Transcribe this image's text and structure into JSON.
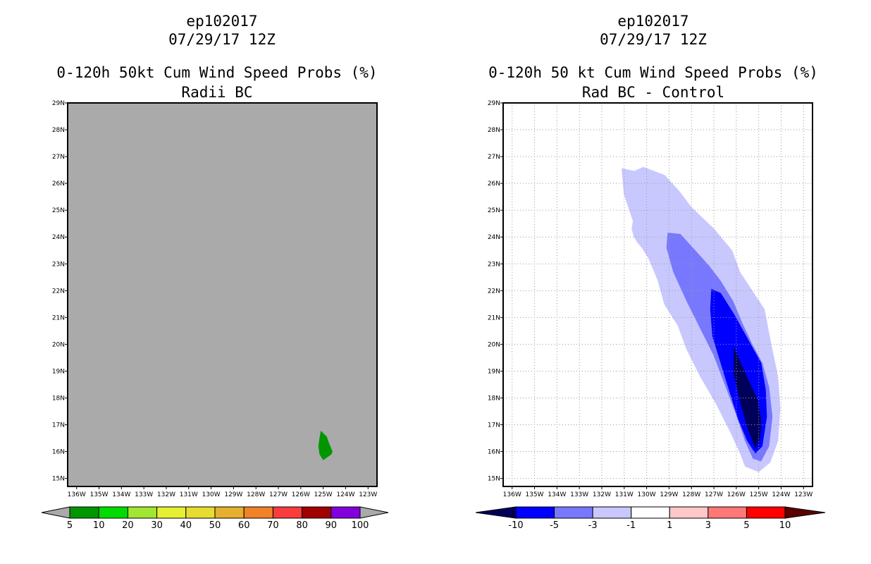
{
  "chart_data": [
    {
      "type": "filled-contour-map",
      "title_lines": [
        "ep102017",
        "07/29/17 12Z",
        "0-120h 50kt Cum Wind Speed Probs (%)",
        "Radii BC"
      ],
      "x_ticks": [
        "136W",
        "135W",
        "134W",
        "133W",
        "132W",
        "131W",
        "130W",
        "129W",
        "128W",
        "127W",
        "126W",
        "125W",
        "124W",
        "123W"
      ],
      "y_ticks": [
        "29N",
        "28N",
        "27N",
        "26N",
        "25N",
        "24N",
        "23N",
        "22N",
        "21N",
        "20N",
        "19N",
        "18N",
        "17N",
        "16N",
        "15N"
      ],
      "xlim": [
        -136.4,
        -122.6
      ],
      "ylim": [
        14.7,
        29.0
      ],
      "background_color": "#aaaaaa",
      "grid": false,
      "colorbar": {
        "labels": [
          "5",
          "10",
          "20",
          "30",
          "40",
          "50",
          "60",
          "70",
          "80",
          "90",
          "100"
        ],
        "colors": [
          "#009600",
          "#00dc00",
          "#a0e632",
          "#e6f032",
          "#e6dc32",
          "#e6af2d",
          "#f08228",
          "#fa3c3c",
          "#a00000",
          "#8200dc"
        ],
        "end_colors": [
          "#aaaaaa",
          "#aaaaaa"
        ]
      },
      "contours": [
        {
          "level": 5,
          "color": "#009600",
          "lon": [
            -125.1,
            -124.85,
            -124.75,
            -124.6,
            -124.65,
            -125.0,
            -125.15,
            -125.2,
            -125.15
          ],
          "lat": [
            16.75,
            16.55,
            16.3,
            16.0,
            15.9,
            15.7,
            15.9,
            16.2,
            16.5
          ]
        }
      ]
    },
    {
      "type": "filled-contour-map",
      "title_lines": [
        "ep102017",
        "07/29/17 12Z",
        "0-120h 50 kt Cum Wind Speed Probs (%)",
        "Rad BC - Control"
      ],
      "x_ticks": [
        "136W",
        "135W",
        "134W",
        "133W",
        "132W",
        "131W",
        "130W",
        "129W",
        "128W",
        "127W",
        "126W",
        "125W",
        "124W",
        "123W"
      ],
      "y_ticks": [
        "29N",
        "28N",
        "27N",
        "26N",
        "25N",
        "24N",
        "23N",
        "22N",
        "21N",
        "20N",
        "19N",
        "18N",
        "17N",
        "16N",
        "15N"
      ],
      "xlim": [
        -136.4,
        -122.6
      ],
      "ylim": [
        14.7,
        29.0
      ],
      "background_color": "#ffffff",
      "grid": true,
      "colorbar": {
        "labels": [
          "-10",
          "-5",
          "-3",
          "-1",
          "1",
          "3",
          "5",
          "10"
        ],
        "colors": [
          "#0000ff",
          "#7878ff",
          "#c8c8ff",
          "#ffffff",
          "#ffc8c8",
          "#ff7878",
          "#ff0000"
        ],
        "end_colors": [
          "#00005a",
          "#5a0000"
        ]
      },
      "contours": [
        {
          "level": -1,
          "color": "#c8c8ff",
          "lon": [
            -131.1,
            -130.55,
            -130.15,
            -129.2,
            -128.55,
            -128.0,
            -127.0,
            -126.2,
            -125.85,
            -125.3,
            -124.75,
            -124.45,
            -124.15,
            -124.05,
            -124.15,
            -124.5,
            -125.0,
            -125.6,
            -125.8,
            -126.3,
            -126.9,
            -127.6,
            -128.2,
            -128.6,
            -129.2,
            -129.5,
            -129.9,
            -130.2,
            -130.4,
            -130.55,
            -130.65,
            -130.6,
            -131.0,
            -131.1
          ],
          "lat": [
            26.55,
            26.45,
            26.6,
            26.3,
            25.7,
            25.1,
            24.3,
            23.5,
            22.7,
            22.0,
            21.3,
            20.0,
            18.8,
            17.6,
            16.4,
            15.6,
            15.25,
            15.45,
            15.9,
            16.8,
            17.8,
            18.8,
            19.8,
            20.7,
            21.5,
            22.4,
            23.2,
            23.6,
            23.8,
            24.0,
            24.3,
            24.6,
            25.6,
            26.55
          ]
        },
        {
          "level": -3,
          "color": "#7878ff",
          "lon": [
            -129.05,
            -128.5,
            -127.9,
            -127.2,
            -126.7,
            -126.15,
            -125.75,
            -125.3,
            -124.85,
            -124.55,
            -124.4,
            -124.55,
            -124.9,
            -125.25,
            -125.6,
            -126.0,
            -126.5,
            -127.0,
            -127.6,
            -128.2,
            -128.8,
            -129.1,
            -129.05
          ],
          "lat": [
            24.15,
            24.1,
            23.55,
            22.9,
            22.35,
            21.6,
            20.8,
            20.0,
            19.3,
            18.4,
            17.3,
            16.2,
            15.65,
            15.75,
            16.4,
            17.4,
            18.5,
            19.6,
            20.6,
            21.6,
            22.7,
            23.6,
            24.15
          ]
        },
        {
          "level": -5,
          "color": "#0000ff",
          "lon": [
            -127.1,
            -126.7,
            -126.1,
            -125.5,
            -124.9,
            -124.7,
            -124.65,
            -124.85,
            -125.15,
            -125.5,
            -125.9,
            -126.5,
            -127.05,
            -127.15,
            -127.1
          ],
          "lat": [
            22.05,
            21.9,
            21.1,
            20.2,
            19.3,
            18.3,
            17.3,
            16.2,
            15.95,
            16.4,
            17.2,
            18.8,
            20.3,
            21.3,
            22.05
          ]
        },
        {
          "level": -10,
          "color": "#00005a",
          "lon": [
            -126.1,
            -125.55,
            -125.05,
            -124.9,
            -124.95,
            -125.15,
            -125.45,
            -125.8,
            -126.1,
            -126.1
          ],
          "lat": [
            19.85,
            18.8,
            17.9,
            17.1,
            16.5,
            16.15,
            16.8,
            17.8,
            18.9,
            19.85
          ]
        }
      ]
    }
  ]
}
